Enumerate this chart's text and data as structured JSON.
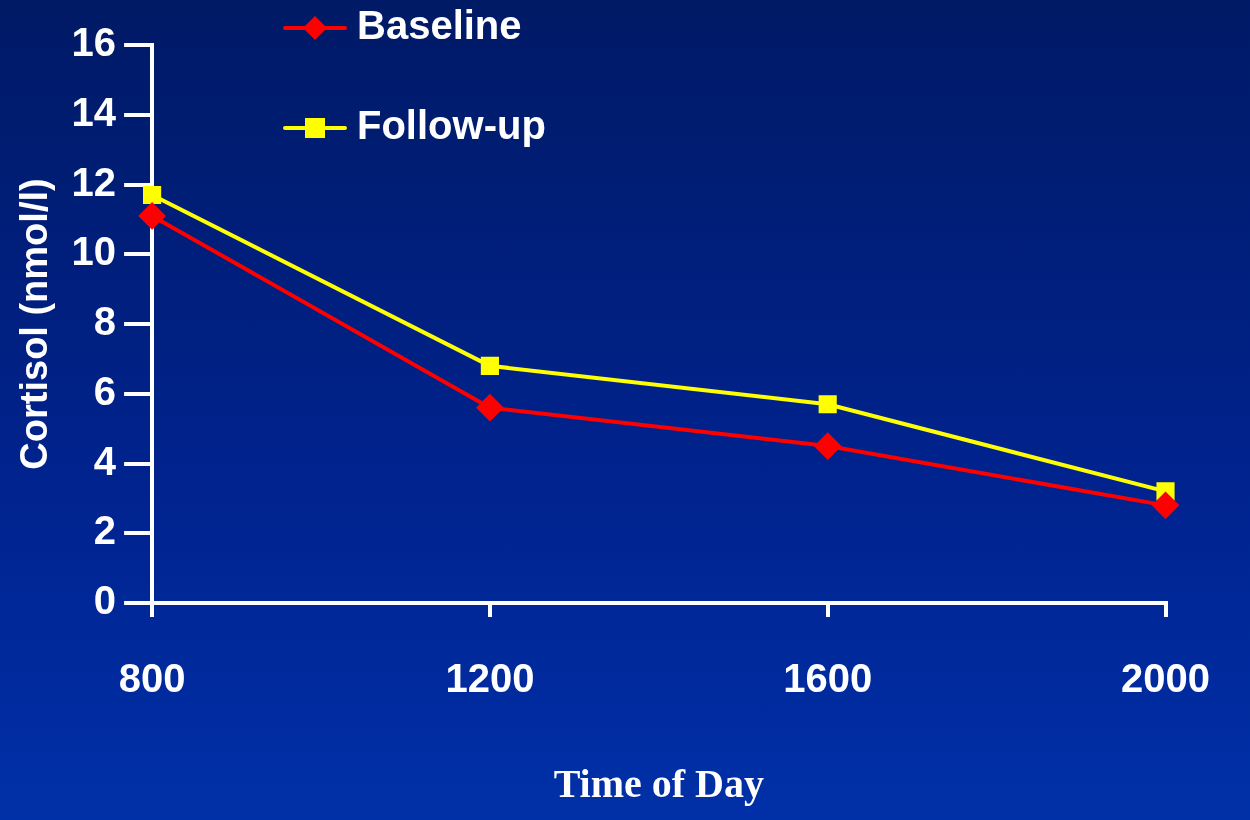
{
  "chart_data": {
    "type": "line",
    "xlabel": "Time of Day",
    "ylabel": "Cortisol (nmol/l)",
    "categories": [
      "800",
      "1200",
      "1600",
      "2000"
    ],
    "series": [
      {
        "name": "Baseline",
        "color": "#ff0000",
        "marker": "diamond",
        "values": [
          11.1,
          5.6,
          4.5,
          2.8
        ]
      },
      {
        "name": "Follow-up",
        "color": "#ffff00",
        "marker": "square",
        "values": [
          11.7,
          6.8,
          5.7,
          3.2
        ]
      }
    ],
    "ylim": [
      0,
      16
    ],
    "yticks": [
      0,
      2,
      4,
      6,
      8,
      10,
      12,
      14,
      16
    ],
    "grid": false,
    "legend": "top left",
    "line_style": "solid"
  }
}
